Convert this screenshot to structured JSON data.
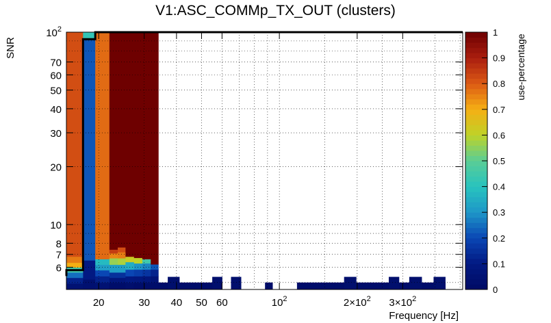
{
  "chart_data": {
    "type": "heatmap",
    "title": "V1:ASC_COMMp_TX_OUT (clusters)",
    "xlabel": "Frequency [Hz]",
    "ylabel": "SNR",
    "zlabel": "use-percentage",
    "x_scale": "log",
    "y_scale": "log",
    "xlim": [
      15,
      512
    ],
    "ylim": [
      4.6,
      100
    ],
    "zlim": [
      0,
      1
    ],
    "grid": true,
    "colormap": "jet (ROOT kBird-like rainbow: dark blue → cyan → yellow → dark red)",
    "x_ticks": [
      {
        "value": 20,
        "label": "20"
      },
      {
        "value": 30,
        "label": "30"
      },
      {
        "value": 40,
        "label": "40"
      },
      {
        "value": 50,
        "label": "50"
      },
      {
        "value": 60,
        "label": "60"
      },
      {
        "value": 100,
        "label": "10^2"
      },
      {
        "value": 200,
        "label": "2×10^2"
      },
      {
        "value": 300,
        "label": "3×10^2"
      }
    ],
    "y_ticks": [
      {
        "value": 6,
        "label": "6"
      },
      {
        "value": 7,
        "label": "7"
      },
      {
        "value": 8,
        "label": "8"
      },
      {
        "value": 10,
        "label": "10"
      },
      {
        "value": 20,
        "label": "20"
      },
      {
        "value": 30,
        "label": "30"
      },
      {
        "value": 40,
        "label": "40"
      },
      {
        "value": 50,
        "label": "50"
      },
      {
        "value": 60,
        "label": "60"
      },
      {
        "value": 70,
        "label": "70"
      },
      {
        "value": 100,
        "label": "10^2"
      }
    ],
    "z_ticks": [
      "0",
      "0.1",
      "0.2",
      "0.3",
      "0.4",
      "0.5",
      "0.6",
      "0.7",
      "0.8",
      "0.9",
      "1"
    ],
    "columns": [
      {
        "f0": 15.0,
        "f1": 17.4,
        "top_fill": 0.82,
        "top_snr": 100,
        "low": [
          [
            4.6,
            4.95,
            0.05
          ],
          [
            4.95,
            5.3,
            0.12
          ],
          [
            5.3,
            5.65,
            0.25
          ],
          [
            5.65,
            6.0,
            0.45
          ],
          [
            6.0,
            6.35,
            0.7
          ],
          [
            6.35,
            6.8,
            0.76
          ]
        ]
      },
      {
        "f0": 17.4,
        "f1": 19.4,
        "top_fill": 0.27,
        "top_snr": 100,
        "cap": [
          [
            92,
            100,
            0.42
          ]
        ],
        "low": [
          [
            4.6,
            5.2,
            0.04
          ],
          [
            5.2,
            6.5,
            0.1
          ]
        ],
        "mid": [
          [
            6.5,
            92,
            0.22
          ]
        ]
      },
      {
        "f0": 19.4,
        "f1": 22.0,
        "top_fill": 0.78,
        "top_snr": 100,
        "low": [
          [
            4.6,
            5.0,
            0.05
          ],
          [
            5.0,
            5.4,
            0.12
          ],
          [
            5.4,
            5.8,
            0.2
          ],
          [
            5.8,
            6.2,
            0.32
          ],
          [
            6.2,
            6.6,
            0.38
          ]
        ]
      },
      {
        "f0": 22.0,
        "f1": 23.7,
        "top_fill": 1.0,
        "top_snr": 100,
        "low": [
          [
            4.6,
            5.0,
            0.02
          ],
          [
            5.0,
            5.3,
            0.08
          ],
          [
            5.3,
            5.65,
            0.15
          ],
          [
            5.65,
            6.2,
            0.32
          ],
          [
            6.2,
            6.7,
            0.56
          ],
          [
            6.7,
            7.1,
            0.75
          ],
          [
            7.1,
            7.4,
            0.85
          ]
        ]
      },
      {
        "f0": 23.7,
        "f1": 25.4,
        "top_fill": 1.0,
        "top_snr": 100,
        "low": [
          [
            4.6,
            5.0,
            0.02
          ],
          [
            5.0,
            5.3,
            0.08
          ],
          [
            5.3,
            5.65,
            0.15
          ],
          [
            5.65,
            6.2,
            0.32
          ],
          [
            6.2,
            6.7,
            0.58
          ],
          [
            6.7,
            7.2,
            0.76
          ],
          [
            7.2,
            7.6,
            0.82
          ]
        ]
      },
      {
        "f0": 25.4,
        "f1": 27.4,
        "top_fill": 1.0,
        "top_snr": 100,
        "low": [
          [
            4.6,
            5.0,
            0.03
          ],
          [
            5.0,
            5.4,
            0.1
          ],
          [
            5.4,
            5.85,
            0.2
          ],
          [
            5.85,
            6.4,
            0.35
          ],
          [
            6.4,
            6.8,
            0.62
          ]
        ]
      },
      {
        "f0": 27.4,
        "f1": 29.5,
        "top_fill": 1.0,
        "top_snr": 100,
        "low": [
          [
            4.6,
            5.0,
            0.02
          ],
          [
            5.0,
            5.4,
            0.09
          ],
          [
            5.4,
            5.85,
            0.18
          ],
          [
            5.85,
            6.3,
            0.3
          ],
          [
            6.3,
            6.7,
            0.6
          ]
        ]
      },
      {
        "f0": 29.5,
        "f1": 31.8,
        "top_fill": 1.0,
        "top_snr": 100,
        "low": [
          [
            4.6,
            5.0,
            0.02
          ],
          [
            5.0,
            5.4,
            0.08
          ],
          [
            5.4,
            5.85,
            0.16
          ],
          [
            5.85,
            6.3,
            0.28
          ],
          [
            6.3,
            6.6,
            0.45
          ]
        ]
      },
      {
        "f0": 31.8,
        "f1": 34.0,
        "top_fill": 1.0,
        "top_snr": 100,
        "low": [
          [
            4.6,
            5.0,
            0.02
          ],
          [
            5.0,
            5.4,
            0.06
          ],
          [
            5.4,
            5.85,
            0.12
          ],
          [
            5.85,
            6.2,
            0.22
          ]
        ]
      }
    ],
    "bottom_row": {
      "snr_range": [
        4.6,
        5.0
      ],
      "value": 0.02,
      "bins": [
        [
          34,
          37
        ],
        [
          37,
          41
        ],
        [
          41,
          47
        ],
        [
          47,
          55
        ],
        [
          55,
          60
        ],
        [
          65,
          71
        ],
        [
          88,
          94
        ],
        [
          117,
          130
        ],
        [
          130,
          145
        ],
        [
          145,
          163
        ],
        [
          163,
          178
        ],
        [
          178,
          198
        ],
        [
          198,
          222
        ],
        [
          222,
          246
        ],
        [
          246,
          265
        ],
        [
          265,
          290
        ],
        [
          290,
          318
        ],
        [
          318,
          355
        ],
        [
          355,
          395
        ],
        [
          395,
          438
        ]
      ]
    },
    "bottom_row_tall": {
      "snr_range": [
        4.6,
        5.35
      ],
      "value": 0.03,
      "bins": [
        [
          37,
          41
        ],
        [
          55,
          60
        ],
        [
          65,
          71
        ],
        [
          178,
          198
        ],
        [
          265,
          290
        ],
        [
          318,
          355
        ],
        [
          395,
          438
        ]
      ]
    },
    "threshold_line": [
      [
        15,
        5.4
      ],
      [
        15,
        5.8
      ],
      [
        17.4,
        5.8
      ],
      [
        17.4,
        92
      ],
      [
        19.4,
        92
      ],
      [
        19.4,
        100
      ],
      [
        512,
        100
      ]
    ]
  }
}
